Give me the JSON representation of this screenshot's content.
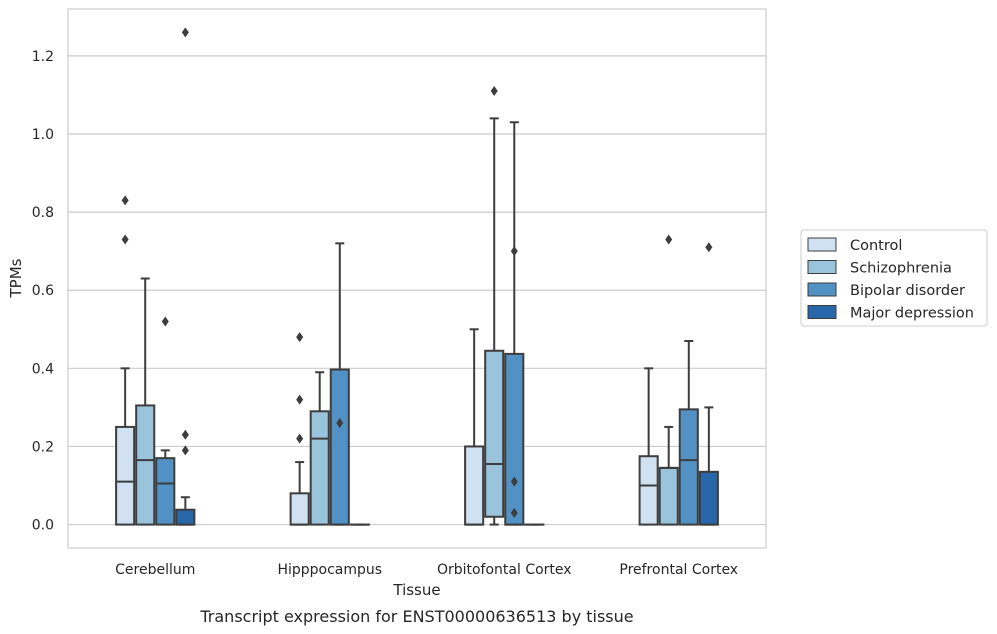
{
  "caption": "Transcript expression for ENST00000636513 by tissue",
  "chart_data": {
    "type": "box",
    "xlabel": "Tissue",
    "ylabel": "TPMs",
    "ylim": [
      -0.06,
      1.32
    ],
    "yticks": [
      0.0,
      0.2,
      0.4,
      0.6,
      0.8,
      1.0,
      1.2
    ],
    "ytick_labels": [
      "0.0",
      "0.2",
      "0.4",
      "0.6",
      "0.8",
      "1.0",
      "1.2"
    ],
    "grid": "horizontal",
    "legend_position": "right",
    "categories": [
      "Cerebellum",
      "Hipppocampus",
      "Orbitofontal Cortex",
      "Prefrontal Cortex"
    ],
    "series": [
      {
        "name": "Control",
        "color": "#d0e1f2",
        "boxes": [
          {
            "q1": 0.0,
            "median": 0.11,
            "q3": 0.25,
            "whisker_low": 0.0,
            "whisker_high": 0.4,
            "outliers": [
              0.73,
              0.83
            ]
          },
          {
            "q1": 0.0,
            "median": 0.0,
            "q3": 0.08,
            "whisker_low": 0.0,
            "whisker_high": 0.16,
            "outliers": [
              0.22,
              0.32,
              0.48
            ]
          },
          {
            "q1": 0.0,
            "median": 0.0,
            "q3": 0.2,
            "whisker_low": 0.0,
            "whisker_high": 0.5,
            "outliers": []
          },
          {
            "q1": 0.0,
            "median": 0.1,
            "q3": 0.175,
            "whisker_low": 0.0,
            "whisker_high": 0.4,
            "outliers": []
          }
        ]
      },
      {
        "name": "Schizophrenia",
        "color": "#9ac4dc",
        "boxes": [
          {
            "q1": 0.0,
            "median": 0.165,
            "q3": 0.305,
            "whisker_low": 0.0,
            "whisker_high": 0.63,
            "outliers": []
          },
          {
            "q1": 0.0,
            "median": 0.22,
            "q3": 0.29,
            "whisker_low": 0.0,
            "whisker_high": 0.39,
            "outliers": []
          },
          {
            "q1": 0.02,
            "median": 0.155,
            "q3": 0.445,
            "whisker_low": 0.0,
            "whisker_high": 1.04,
            "outliers": [
              1.11
            ]
          },
          {
            "q1": 0.0,
            "median": 0.145,
            "q3": 0.145,
            "whisker_low": 0.0,
            "whisker_high": 0.25,
            "outliers": [
              0.73
            ]
          }
        ]
      },
      {
        "name": "Bipolar disorder",
        "color": "#5191c4",
        "boxes": [
          {
            "q1": 0.0,
            "median": 0.105,
            "q3": 0.17,
            "whisker_low": 0.0,
            "whisker_high": 0.19,
            "outliers": [
              0.52
            ]
          },
          {
            "q1": 0.0,
            "median": 0.0,
            "q3": 0.397,
            "whisker_low": 0.0,
            "whisker_high": 0.72,
            "outliers": [
              0.26
            ]
          },
          {
            "q1": 0.0,
            "median": 0.0,
            "q3": 0.437,
            "whisker_low": 0.0,
            "whisker_high": 1.03,
            "outliers": [
              0.03,
              0.11,
              0.7
            ]
          },
          {
            "q1": 0.0,
            "median": 0.165,
            "q3": 0.295,
            "whisker_low": 0.0,
            "whisker_high": 0.47,
            "outliers": []
          }
        ]
      },
      {
        "name": "Major depression",
        "color": "#2867a9",
        "boxes": [
          {
            "q1": 0.0,
            "median": 0.0,
            "q3": 0.038,
            "whisker_low": 0.0,
            "whisker_high": 0.07,
            "outliers": [
              0.19,
              0.23,
              1.26
            ]
          },
          {
            "q1": 0.0,
            "median": 0.0,
            "q3": 0.0,
            "whisker_low": 0.0,
            "whisker_high": 0.0,
            "outliers": []
          },
          {
            "q1": 0.0,
            "median": 0.0,
            "q3": 0.0,
            "whisker_low": 0.0,
            "whisker_high": 0.0,
            "outliers": []
          },
          {
            "q1": 0.0,
            "median": 0.0,
            "q3": 0.135,
            "whisker_low": 0.0,
            "whisker_high": 0.3,
            "outliers": [
              0.71
            ]
          }
        ]
      }
    ]
  }
}
